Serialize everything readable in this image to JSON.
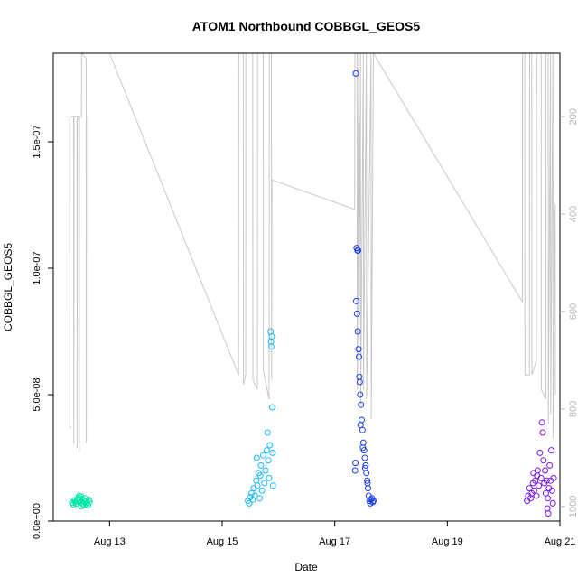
{
  "chart_data": {
    "type": "scatter",
    "title": "ATOM1 Northbound COBBGL_GEOS5",
    "xlabel": "Date",
    "ylabel": "COBBGL_GEOS5",
    "xlim": [
      "2016-08-12T00:00",
      "2016-08-21T00:00"
    ],
    "ylim": [
      0,
      1.85e-07
    ],
    "x_ticks": [
      {
        "label": "Aug 13",
        "value": "2016-08-13T00:00"
      },
      {
        "label": "Aug 15",
        "value": "2016-08-15T00:00"
      },
      {
        "label": "Aug 17",
        "value": "2016-08-17T00:00"
      },
      {
        "label": "Aug 19",
        "value": "2016-08-19T00:00"
      },
      {
        "label": "Aug 21",
        "value": "2016-08-21T00:00"
      }
    ],
    "y_ticks": [
      {
        "label": "0.0e+00",
        "value": 0
      },
      {
        "label": "5.0e-08",
        "value": 5e-08
      },
      {
        "label": "1.0e-07",
        "value": 1e-07
      },
      {
        "label": "1.5e-07",
        "value": 1.5e-07
      }
    ],
    "y2_ticks": [
      {
        "label": "200",
        "value": 200
      },
      {
        "label": "400",
        "value": 400
      },
      {
        "label": "600",
        "value": 600
      },
      {
        "label": "800",
        "value": 800
      },
      {
        "label": "1000",
        "value": 1000
      }
    ],
    "y2lim_inverted": [
      1030,
      70
    ],
    "grid": false,
    "colors": {
      "axis": "#000000",
      "secondary_axis": "#b4b4b4",
      "pressure_line": "#c8c8c8",
      "flight1": "#00e5a8",
      "flight2": "#1ab8ff",
      "flight3": "#1a3cf0",
      "flight4": "#7a1ae8"
    },
    "series": [
      {
        "color": "#00e5a8",
        "points": [
          [
            "2016-08-12T08:00",
            7.2e-09
          ],
          [
            "2016-08-12T08:30",
            6.6e-09
          ],
          [
            "2016-08-12T09:00",
            8.1e-09
          ],
          [
            "2016-08-12T09:20",
            7.5e-09
          ],
          [
            "2016-08-12T09:45",
            6.9e-09
          ],
          [
            "2016-08-12T10:10",
            8.6e-09
          ],
          [
            "2016-08-12T10:30",
            7.9e-09
          ],
          [
            "2016-08-12T10:50",
            9.2e-09
          ],
          [
            "2016-08-12T11:10",
            8.3e-09
          ],
          [
            "2016-08-12T11:30",
            7.4e-09
          ],
          [
            "2016-08-12T11:50",
            9.8e-09
          ],
          [
            "2016-08-12T12:10",
            8.8e-09
          ],
          [
            "2016-08-12T12:30",
            7.1e-09
          ],
          [
            "2016-08-12T12:50",
            6.5e-09
          ],
          [
            "2016-08-12T13:10",
            8e-09
          ],
          [
            "2016-08-12T13:30",
            9e-09
          ],
          [
            "2016-08-12T13:50",
            7.7e-09
          ],
          [
            "2016-08-12T14:10",
            6.8e-09
          ],
          [
            "2016-08-12T14:30",
            7.3e-09
          ],
          [
            "2016-08-12T14:50",
            6.2e-09
          ],
          [
            "2016-08-12T15:10",
            8.4e-09
          ],
          [
            "2016-08-12T15:30",
            7.6e-09
          ],
          [
            "2016-08-12T11:00",
            1e-08
          ],
          [
            "2016-08-12T12:00",
            5.9e-09
          ]
        ]
      },
      {
        "color": "#1ab8ff",
        "points": [
          [
            "2016-08-15T11:00",
            8e-09
          ],
          [
            "2016-08-15T11:30",
            7e-09
          ],
          [
            "2016-08-15T12:00",
            9.5e-09
          ],
          [
            "2016-08-15T12:30",
            1.1e-08
          ],
          [
            "2016-08-15T13:00",
            8.5e-09
          ],
          [
            "2016-08-15T13:30",
            1.3e-08
          ],
          [
            "2016-08-15T14:00",
            1e-08
          ],
          [
            "2016-08-15T14:30",
            1.6e-08
          ],
          [
            "2016-08-15T15:00",
            1.4e-08
          ],
          [
            "2016-08-15T15:30",
            1.9e-08
          ],
          [
            "2016-08-15T16:00",
            9e-09
          ],
          [
            "2016-08-15T16:30",
            2.2e-08
          ],
          [
            "2016-08-15T17:00",
            1.2e-08
          ],
          [
            "2016-08-15T17:30",
            2.6e-08
          ],
          [
            "2016-08-15T18:00",
            1.5e-08
          ],
          [
            "2016-08-15T18:30",
            2e-08
          ],
          [
            "2016-08-15T19:00",
            2.8e-08
          ],
          [
            "2016-08-15T19:20",
            3.5e-08
          ],
          [
            "2016-08-15T19:40",
            2.4e-08
          ],
          [
            "2016-08-15T20:00",
            1.7e-08
          ],
          [
            "2016-08-15T20:20",
            3e-08
          ],
          [
            "2016-08-15T20:40",
            7.5e-08
          ],
          [
            "2016-08-15T20:50",
            7.1e-08
          ],
          [
            "2016-08-15T21:00",
            6.9e-08
          ],
          [
            "2016-08-15T21:10",
            7.3e-08
          ],
          [
            "2016-08-15T21:20",
            4.5e-08
          ],
          [
            "2016-08-15T21:30",
            2.7e-08
          ],
          [
            "2016-08-15T21:40",
            1.4e-08
          ],
          [
            "2016-08-15T14:45",
            2.5e-08
          ],
          [
            "2016-08-15T16:15",
            1.8e-08
          ]
        ]
      },
      {
        "color": "#1a3cf0",
        "points": [
          [
            "2016-08-17T09:00",
            1.77e-07
          ],
          [
            "2016-08-17T09:20",
            1.08e-07
          ],
          [
            "2016-08-17T09:40",
            1.07e-07
          ],
          [
            "2016-08-17T10:00",
            1.07e-07
          ],
          [
            "2016-08-17T09:10",
            8.7e-08
          ],
          [
            "2016-08-17T09:30",
            8.2e-08
          ],
          [
            "2016-08-17T09:50",
            7.5e-08
          ],
          [
            "2016-08-17T10:10",
            6.8e-08
          ],
          [
            "2016-08-17T10:30",
            5.7e-08
          ],
          [
            "2016-08-17T10:50",
            5e-08
          ],
          [
            "2016-08-17T11:10",
            4.6e-08
          ],
          [
            "2016-08-17T11:30",
            4e-08
          ],
          [
            "2016-08-17T11:50",
            3.6e-08
          ],
          [
            "2016-08-17T12:10",
            3.1e-08
          ],
          [
            "2016-08-17T12:30",
            2.8e-08
          ],
          [
            "2016-08-17T12:50",
            2.5e-08
          ],
          [
            "2016-08-17T13:10",
            2.2e-08
          ],
          [
            "2016-08-17T13:30",
            1.9e-08
          ],
          [
            "2016-08-17T13:50",
            1.6e-08
          ],
          [
            "2016-08-17T14:10",
            1.3e-08
          ],
          [
            "2016-08-17T14:30",
            1e-08
          ],
          [
            "2016-08-17T14:50",
            8e-09
          ],
          [
            "2016-08-17T15:10",
            7e-09
          ],
          [
            "2016-08-17T15:30",
            8.5e-09
          ],
          [
            "2016-08-17T15:50",
            9e-09
          ],
          [
            "2016-08-17T16:10",
            7.5e-09
          ],
          [
            "2016-08-17T16:30",
            8e-09
          ],
          [
            "2016-08-17T08:40",
            2e-08
          ],
          [
            "2016-08-17T08:50",
            2.3e-08
          ],
          [
            "2016-08-17T10:20",
            6.5e-08
          ],
          [
            "2016-08-17T10:40",
            5.5e-08
          ],
          [
            "2016-08-17T11:00",
            3.8e-08
          ],
          [
            "2016-08-17T12:00",
            2.9e-08
          ],
          [
            "2016-08-17T13:00",
            2.1e-08
          ],
          [
            "2016-08-17T14:00",
            1.5e-08
          ]
        ]
      },
      {
        "color": "#7a1ae8",
        "points": [
          [
            "2016-08-20T10:00",
            8e-09
          ],
          [
            "2016-08-20T10:30",
            1e-08
          ],
          [
            "2016-08-20T11:00",
            1.3e-08
          ],
          [
            "2016-08-20T11:30",
            9e-09
          ],
          [
            "2016-08-20T12:00",
            1.1e-08
          ],
          [
            "2016-08-20T12:30",
            1.5e-08
          ],
          [
            "2016-08-20T13:00",
            1.2e-08
          ],
          [
            "2016-08-20T13:30",
            1.6e-08
          ],
          [
            "2016-08-20T14:00",
            1e-08
          ],
          [
            "2016-08-20T14:30",
            2e-08
          ],
          [
            "2016-08-20T15:00",
            1.4e-08
          ],
          [
            "2016-08-20T15:30",
            2.7e-08
          ],
          [
            "2016-08-20T16:00",
            1.7e-08
          ],
          [
            "2016-08-20T16:20",
            3.9e-08
          ],
          [
            "2016-08-20T16:40",
            3.5e-08
          ],
          [
            "2016-08-20T17:00",
            2.4e-08
          ],
          [
            "2016-08-20T17:20",
            1.5e-08
          ],
          [
            "2016-08-20T17:40",
            2e-08
          ],
          [
            "2016-08-20T18:00",
            1.1e-08
          ],
          [
            "2016-08-20T18:20",
            1.6e-08
          ],
          [
            "2016-08-20T18:40",
            5e-09
          ],
          [
            "2016-08-20T19:00",
            3e-09
          ],
          [
            "2016-08-20T19:20",
            1.3e-08
          ],
          [
            "2016-08-20T19:40",
            2.2e-08
          ],
          [
            "2016-08-20T20:00",
            1.6e-08
          ],
          [
            "2016-08-20T20:20",
            2.8e-08
          ],
          [
            "2016-08-20T20:40",
            1.2e-08
          ],
          [
            "2016-08-20T21:00",
            7e-09
          ],
          [
            "2016-08-20T21:20",
            1.7e-08
          ],
          [
            "2016-08-20T12:45",
            1.9e-08
          ],
          [
            "2016-08-20T14:15",
            1.8e-08
          ],
          [
            "2016-08-20T18:50",
            9e-09
          ]
        ]
      }
    ],
    "pressure_trace": {
      "axis": "secondary",
      "segments": [
        {
          "points": [
            [
              "2016-08-12T07:00",
              200
            ],
            [
              "2016-08-12T07:05",
              840
            ],
            [
              "2016-08-12T07:10",
              200
            ],
            [
              "2016-08-12T08:40",
              200
            ],
            [
              "2016-08-12T08:45",
              870
            ],
            [
              "2016-08-12T08:50",
              200
            ],
            [
              "2016-08-12T10:10",
              200
            ],
            [
              "2016-08-12T10:15",
              880
            ],
            [
              "2016-08-12T10:20",
              200
            ],
            [
              "2016-08-12T11:00",
              200
            ],
            [
              "2016-08-12T11:05",
              890
            ],
            [
              "2016-08-12T11:10",
              200
            ],
            [
              "2016-08-12T12:00",
              200
            ],
            [
              "2016-08-12T12:05",
              60
            ],
            [
              "2016-08-12T14:00",
              80
            ],
            [
              "2016-08-12T14:05",
              870
            ],
            [
              "2016-08-12T14:10",
              200
            ]
          ]
        },
        {
          "points": [
            [
              "2016-08-13T00:00",
              70
            ],
            [
              "2016-08-15T07:00",
              730
            ]
          ]
        },
        {
          "points": [
            [
              "2016-08-15T07:00",
              730
            ],
            [
              "2016-08-15T07:05",
              70
            ],
            [
              "2016-08-15T09:00",
              70
            ],
            [
              "2016-08-15T09:05",
              750
            ],
            [
              "2016-08-15T10:00",
              730
            ],
            [
              "2016-08-15T10:05",
              70
            ],
            [
              "2016-08-15T13:00",
              70
            ],
            [
              "2016-08-15T13:05",
              740
            ],
            [
              "2016-08-15T15:00",
              760
            ],
            [
              "2016-08-15T15:05",
              70
            ],
            [
              "2016-08-15T17:30",
              70
            ],
            [
              "2016-08-15T17:35",
              720
            ],
            [
              "2016-08-15T20:00",
              780
            ],
            [
              "2016-08-15T20:05",
              70
            ],
            [
              "2016-08-15T21:00",
              70
            ],
            [
              "2016-08-15T21:05",
              740
            ],
            [
              "2016-08-15T21:15",
              330
            ]
          ]
        },
        {
          "points": [
            [
              "2016-08-15T21:15",
              330
            ],
            [
              "2016-08-17T08:30",
              390
            ]
          ]
        },
        {
          "points": [
            [
              "2016-08-17T08:30",
              390
            ],
            [
              "2016-08-17T08:35",
              70
            ],
            [
              "2016-08-17T09:30",
              70
            ],
            [
              "2016-08-17T09:35",
              760
            ],
            [
              "2016-08-17T10:10",
              70
            ],
            [
              "2016-08-17T10:15",
              760
            ],
            [
              "2016-08-17T11:00",
              70
            ],
            [
              "2016-08-17T11:05",
              790
            ],
            [
              "2016-08-17T12:10",
              70
            ],
            [
              "2016-08-17T12:15",
              760
            ],
            [
              "2016-08-17T13:30",
              70
            ],
            [
              "2016-08-17T13:35",
              780
            ],
            [
              "2016-08-17T15:30",
              70
            ],
            [
              "2016-08-17T15:35",
              820
            ],
            [
              "2016-08-17T16:30",
              70
            ]
          ]
        },
        {
          "points": [
            [
              "2016-08-17T16:30",
              70
            ],
            [
              "2016-08-20T08:00",
              580
            ]
          ]
        },
        {
          "points": [
            [
              "2016-08-20T08:00",
              580
            ],
            [
              "2016-08-20T08:05",
              70
            ],
            [
              "2016-08-20T09:00",
              70
            ],
            [
              "2016-08-20T09:05",
              730
            ],
            [
              "2016-08-20T11:00",
              730
            ],
            [
              "2016-08-20T11:05",
              70
            ],
            [
              "2016-08-20T12:00",
              70
            ],
            [
              "2016-08-20T12:05",
              730
            ],
            [
              "2016-08-20T14:00",
              700
            ],
            [
              "2016-08-20T14:05",
              70
            ],
            [
              "2016-08-20T16:00",
              70
            ],
            [
              "2016-08-20T16:05",
              760
            ],
            [
              "2016-08-20T18:00",
              780
            ],
            [
              "2016-08-20T18:05",
              70
            ],
            [
              "2016-08-20T19:00",
              70
            ],
            [
              "2016-08-20T19:05",
              830
            ],
            [
              "2016-08-20T20:00",
              70
            ],
            [
              "2016-08-20T20:05",
              810
            ],
            [
              "2016-08-20T21:00",
              70
            ],
            [
              "2016-08-20T21:05",
              860
            ],
            [
              "2016-08-20T22:00",
              380
            ],
            [
              "2016-08-20T22:05",
              770
            ]
          ]
        }
      ]
    }
  }
}
